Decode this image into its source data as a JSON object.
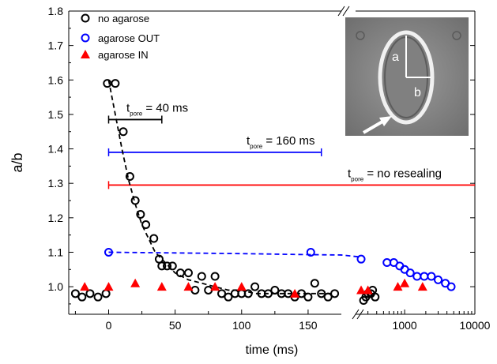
{
  "chart_data": {
    "type": "scatter",
    "title": "",
    "xlabel": "time (ms)",
    "ylabel": "a/b",
    "ylim": [
      0.92,
      1.8
    ],
    "y_ticks": [
      1.0,
      1.1,
      1.2,
      1.3,
      1.4,
      1.5,
      1.6,
      1.7,
      1.8
    ],
    "x_axis": {
      "type": "broken",
      "segments": [
        {
          "scale": "linear",
          "range": [
            -30,
            175
          ],
          "ticks": [
            0,
            50,
            100,
            150
          ],
          "tick_labels": [
            "0",
            "50",
            "100",
            "150"
          ]
        },
        {
          "scale": "log",
          "range": [
            200,
            10000
          ],
          "ticks": [
            1000,
            10000
          ],
          "tick_labels": [
            "1000",
            "10000"
          ]
        }
      ]
    },
    "legend": {
      "position": "top-left",
      "entries": [
        {
          "label": "no agarose",
          "color": "#000000",
          "marker": "circle-open"
        },
        {
          "label": "agarose OUT",
          "color": "#0000ff",
          "marker": "circle-open"
        },
        {
          "label": "agarose IN",
          "color": "#ff0000",
          "marker": "triangle-filled"
        }
      ]
    },
    "series": [
      {
        "name": "no agarose",
        "color": "#000000",
        "marker": "circle-open",
        "x": [
          -25,
          -20,
          -14,
          -8,
          -2,
          -1,
          5,
          11,
          16,
          20,
          24,
          28,
          34,
          38,
          40,
          44,
          48,
          54,
          60,
          65,
          70,
          75,
          80,
          85,
          90,
          95,
          100,
          105,
          110,
          115,
          120,
          125,
          130,
          135,
          140,
          145,
          150,
          155,
          160,
          165,
          170,
          260,
          280,
          300,
          330,
          350,
          380
        ],
        "y": [
          0.98,
          0.97,
          0.98,
          0.97,
          0.98,
          1.59,
          1.59,
          1.45,
          1.32,
          1.25,
          1.21,
          1.18,
          1.14,
          1.08,
          1.06,
          1.06,
          1.06,
          1.04,
          1.04,
          0.99,
          1.03,
          0.99,
          1.03,
          0.98,
          0.97,
          0.98,
          0.98,
          0.98,
          1.0,
          0.98,
          0.98,
          0.99,
          0.98,
          0.98,
          0.97,
          0.98,
          0.97,
          1.01,
          0.98,
          0.97,
          0.98,
          0.96,
          0.97,
          0.98,
          0.98,
          0.99,
          0.97
        ],
        "fit_line": {
          "style": "dashed",
          "x": [
            0,
            5,
            10,
            15,
            20,
            25,
            30,
            35,
            40,
            45,
            50,
            60,
            70,
            80,
            90,
            100,
            110,
            120,
            130,
            140,
            150,
            160,
            170
          ],
          "y": [
            1.6,
            1.5,
            1.4,
            1.31,
            1.24,
            1.18,
            1.14,
            1.1,
            1.08,
            1.06,
            1.04,
            1.02,
            1.01,
            1.0,
            0.99,
            0.99,
            0.98,
            0.98,
            0.98,
            0.98,
            0.98,
            0.98,
            0.98
          ]
        }
      },
      {
        "name": "agarose OUT",
        "color": "#0000ff",
        "marker": "circle-open",
        "x": [
          0,
          152,
          240,
          560,
          700,
          850,
          1000,
          1200,
          1500,
          1900,
          2400,
          3000,
          3800,
          4600
        ],
        "y": [
          1.1,
          1.1,
          1.08,
          1.07,
          1.07,
          1.06,
          1.05,
          1.04,
          1.03,
          1.03,
          1.03,
          1.02,
          1.01,
          1.0
        ],
        "fit_line": {
          "style": "dashed",
          "x": [
            0,
            50,
            100,
            150,
            175,
            240
          ],
          "y": [
            1.1,
            1.098,
            1.096,
            1.093,
            1.092,
            1.086
          ]
        }
      },
      {
        "name": "agarose IN",
        "color": "#ff0000",
        "marker": "triangle-filled",
        "x": [
          -18,
          0,
          20,
          40,
          60,
          80,
          100,
          140,
          240,
          300,
          800,
          1000,
          1800
        ],
        "y": [
          1.0,
          1.0,
          1.01,
          1.0,
          1.0,
          1.0,
          1.0,
          0.98,
          0.99,
          0.99,
          1.0,
          1.01,
          1.0
        ]
      }
    ],
    "annotations": [
      {
        "id": "pore40",
        "color": "#000000",
        "y": 1.485,
        "x_start": 0,
        "x_end": 40,
        "text_main": "t",
        "text_sub": "pore",
        "text_rest": " = 40 ms"
      },
      {
        "id": "pore160",
        "color": "#0000ff",
        "y": 1.39,
        "x_start": 0,
        "x_end": 160,
        "text_main": "t",
        "text_sub": "pore",
        "text_rest": " = 160 ms"
      },
      {
        "id": "pore-nores",
        "color": "#ff0000",
        "y": 1.295,
        "x_start": 0,
        "x_end": 10000,
        "text_main": "t",
        "text_sub": "pore",
        "text_rest": " = no resealing"
      }
    ],
    "inset": {
      "label_a": "a",
      "label_b": "b"
    }
  }
}
